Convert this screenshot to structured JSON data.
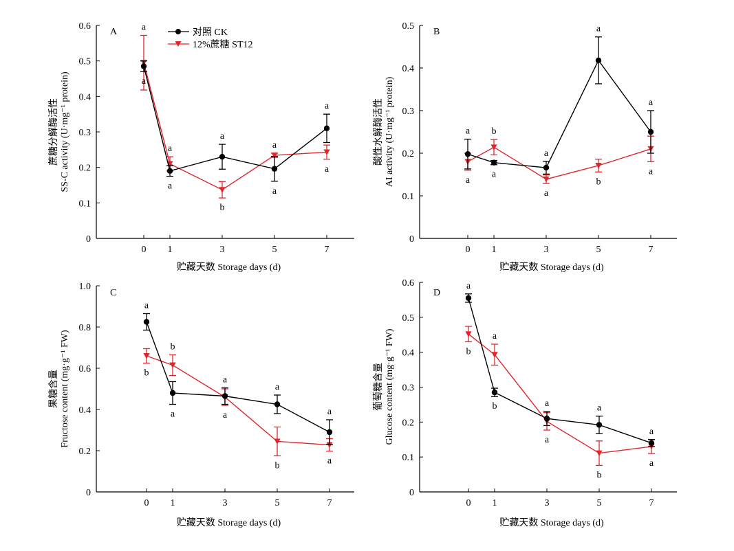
{
  "legend": {
    "ck": "对照 CK",
    "st": "12%蔗糖 ST12"
  },
  "colors": {
    "ck": "#000000",
    "st": "#e0262c"
  },
  "chart_data": [
    {
      "type": "line",
      "panel": "A",
      "categories": [
        "0",
        "1",
        "3",
        "5",
        "7"
      ],
      "x": [
        0,
        1,
        3,
        5,
        7
      ],
      "ylabel_cn": "蔗糖分解酶活性",
      "ylabel_en": "SS-C activity (U·mg⁻¹ protein)",
      "xlabel": "贮藏天数 Storage days (d)",
      "ylim": [
        0,
        0.6
      ],
      "yticks": [
        "0",
        "0.1",
        "0.2",
        "0.3",
        "0.4",
        "0.5",
        "0.6"
      ],
      "series": [
        {
          "name": "对照 CK",
          "key": "ck",
          "values": [
            0.485,
            0.19,
            0.23,
            0.196,
            0.31
          ],
          "err": [
            0.015,
            0.015,
            0.035,
            0.035,
            0.04
          ],
          "letters": [
            "a",
            "a",
            "a",
            "a",
            "a"
          ]
        },
        {
          "name": "12%蔗糖 ST12",
          "key": "st",
          "values": [
            0.495,
            0.21,
            0.137,
            0.234,
            0.243
          ],
          "err": [
            0.077,
            0.02,
            0.023,
            0.006,
            0.02
          ],
          "letters": [
            "a",
            "a",
            "b",
            "a",
            "a"
          ]
        }
      ]
    },
    {
      "type": "line",
      "panel": "B",
      "categories": [
        "0",
        "1",
        "3",
        "5",
        "7"
      ],
      "x": [
        0,
        1,
        3,
        5,
        7
      ],
      "ylabel_cn": "酸性水解酶活性",
      "ylabel_en": "AI activity (U·mg⁻¹ protein)",
      "xlabel": "贮藏天数 Storage days (d)",
      "ylim": [
        0,
        0.5
      ],
      "yticks": [
        "0",
        "0.1",
        "0.2",
        "0.3",
        "0.4",
        "0.5"
      ],
      "series": [
        {
          "name": "对照 CK",
          "key": "ck",
          "values": [
            0.198,
            0.178,
            0.166,
            0.418,
            0.25
          ],
          "err": [
            0.035,
            0.005,
            0.015,
            0.055,
            0.05
          ],
          "letters": [
            "a",
            "a",
            "a",
            "a",
            "a"
          ]
        },
        {
          "name": "12%蔗糖 ST12",
          "key": "st",
          "values": [
            0.18,
            0.214,
            0.139,
            0.171,
            0.21
          ],
          "err": [
            0.02,
            0.018,
            0.01,
            0.015,
            0.03
          ],
          "letters": [
            "a",
            "b",
            "a",
            "b",
            "a"
          ]
        }
      ]
    },
    {
      "type": "line",
      "panel": "C",
      "categories": [
        "0",
        "1",
        "3",
        "5",
        "7"
      ],
      "x": [
        0,
        1,
        3,
        5,
        7
      ],
      "ylabel_cn": "果糖含量",
      "ylabel_en": "Fructose content (mg·g⁻¹ FW)",
      "xlabel": "贮藏天数 Storage days (d)",
      "ylim": [
        0,
        1.0
      ],
      "yticks": [
        "0",
        "0.2",
        "0.4",
        "0.6",
        "0.8",
        "1.0"
      ],
      "series": [
        {
          "name": "对照 CK",
          "key": "ck",
          "values": [
            0.825,
            0.48,
            0.465,
            0.425,
            0.29
          ],
          "err": [
            0.04,
            0.055,
            0.04,
            0.045,
            0.06
          ],
          "letters": [
            "a",
            "a",
            "a",
            "a",
            "a"
          ]
        },
        {
          "name": "12%蔗糖 ST12",
          "key": "st",
          "values": [
            0.66,
            0.615,
            0.46,
            0.245,
            0.228
          ],
          "err": [
            0.035,
            0.05,
            0.04,
            0.07,
            0.03
          ],
          "letters": [
            "b",
            "b",
            "a",
            "b",
            "a"
          ]
        }
      ]
    },
    {
      "type": "line",
      "panel": "D",
      "categories": [
        "0",
        "1",
        "3",
        "5",
        "7"
      ],
      "x": [
        0,
        1,
        3,
        5,
        7
      ],
      "ylabel_cn": "葡萄糖含量",
      "ylabel_en": "Glucose content (mg·g⁻¹ FW)",
      "xlabel": "贮藏天数 Storage days (d)",
      "ylim": [
        0,
        0.6
      ],
      "yticks": [
        "0",
        "0.1",
        "0.2",
        "0.3",
        "0.4",
        "0.5",
        "0.6"
      ],
      "series": [
        {
          "name": "对照 CK",
          "key": "ck",
          "values": [
            0.555,
            0.285,
            0.21,
            0.192,
            0.14
          ],
          "err": [
            0.012,
            0.012,
            0.02,
            0.025,
            0.01
          ],
          "letters": [
            "a",
            "b",
            "a",
            "a",
            "a"
          ]
        },
        {
          "name": "12%蔗糖 ST12",
          "key": "st",
          "values": [
            0.452,
            0.393,
            0.202,
            0.111,
            0.13
          ],
          "err": [
            0.022,
            0.03,
            0.025,
            0.035,
            0.02
          ],
          "letters": [
            "b",
            "a",
            "a",
            "b",
            "a"
          ]
        }
      ]
    }
  ]
}
